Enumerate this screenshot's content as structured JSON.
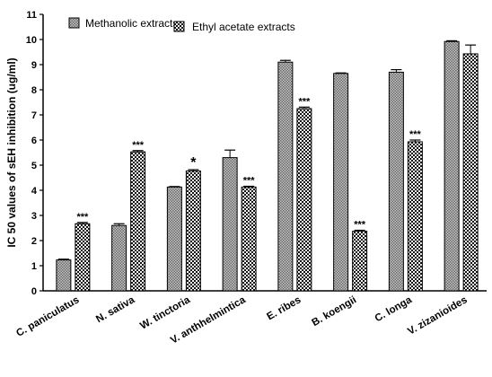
{
  "chart_data": {
    "type": "bar",
    "title": "",
    "xlabel": "",
    "ylabel": "IC 50 values of sEH inhibition (ug/ml)",
    "ylim": [
      0,
      11
    ],
    "yticks": [
      "0",
      "1",
      "2",
      "3",
      "4",
      "5",
      "6",
      "7",
      "8",
      "9",
      "10",
      "11"
    ],
    "categories": [
      "C. paniculatus",
      "N. sativa",
      "W. tinctoria",
      "V. anthhelmintica",
      "E. ribes",
      "B. koengii",
      "C. longa",
      "V. zizanioides"
    ],
    "series": [
      {
        "name": "Methanolic extracts",
        "values": [
          1.23,
          2.6,
          4.13,
          5.3,
          9.1,
          8.65,
          8.7,
          9.92
        ],
        "errors": [
          0.03,
          0.07,
          0.02,
          0.3,
          0.07,
          0.02,
          0.1,
          0.03
        ],
        "significance": [
          "",
          "",
          "",
          "",
          "",
          "",
          "",
          ""
        ]
      },
      {
        "name": "Ethyl acetate extracts",
        "values": [
          2.67,
          5.53,
          4.77,
          4.13,
          7.25,
          2.37,
          5.93,
          9.43
        ],
        "errors": [
          0.05,
          0.05,
          0.05,
          0.03,
          0.06,
          0.04,
          0.07,
          0.35
        ],
        "significance": [
          "***",
          "***",
          "*",
          "***",
          "***",
          "***",
          "***",
          ""
        ]
      }
    ],
    "legend": "top-left",
    "grid": false
  }
}
